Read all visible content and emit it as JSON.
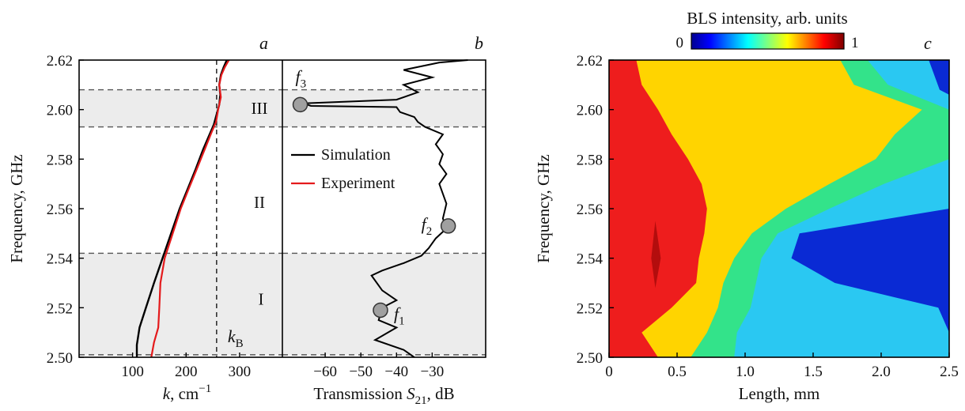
{
  "chart_data": [
    {
      "panel": "a",
      "type": "line",
      "xlabel": "k, cm⁻¹",
      "xlabel_parts": {
        "var": "k",
        "unit": ", cm",
        "sup": "−1"
      },
      "ylabel": "Frequency, GHz",
      "xlim": [
        0,
        380
      ],
      "ylim": [
        2.5,
        2.62
      ],
      "xticks": [
        100,
        200,
        300
      ],
      "yticks": [
        2.5,
        2.52,
        2.54,
        2.56,
        2.58,
        2.6,
        2.62
      ],
      "ytick_labels": [
        "2.50",
        "2.52",
        "2.54",
        "2.56",
        "2.58",
        "2.60",
        "2.62"
      ],
      "vline": {
        "x": 257,
        "label": "kB",
        "label_parts": {
          "var": "k",
          "sub": "B"
        }
      },
      "series": [
        {
          "name": "Simulation",
          "color": "#000000",
          "x": [
            108,
            108,
            113,
            125,
            140,
            156,
            172,
            188,
            203,
            218,
            232,
            244,
            252,
            257,
            262,
            264,
            262,
            265,
            270,
            276
          ],
          "y": [
            2.5,
            2.505,
            2.512,
            2.52,
            2.53,
            2.54,
            2.55,
            2.56,
            2.568,
            2.576,
            2.584,
            2.59,
            2.594,
            2.598,
            2.602,
            2.606,
            2.61,
            2.614,
            2.617,
            2.62
          ]
        },
        {
          "name": "Experiment",
          "color": "#e41a1c",
          "x": [
            135,
            140,
            148,
            150,
            152,
            160,
            175,
            190,
            205,
            220,
            235,
            248,
            256,
            260,
            265,
            262,
            266,
            272,
            280
          ],
          "y": [
            2.5,
            2.506,
            2.512,
            2.52,
            2.53,
            2.54,
            2.55,
            2.56,
            2.568,
            2.576,
            2.584,
            2.591,
            2.595,
            2.6,
            2.605,
            2.61,
            2.614,
            2.617,
            2.62
          ]
        }
      ]
    },
    {
      "panel": "b",
      "type": "line",
      "xlabel": "Transmission S21, dB",
      "xlabel_parts": {
        "pre": "Transmission ",
        "var": "S",
        "sub": "21",
        "post": ", dB"
      },
      "xlim": [
        -72,
        -15
      ],
      "ylim": [
        2.5,
        2.62
      ],
      "xticks": [
        -60,
        -50,
        -40,
        -30
      ],
      "xtick_labels": [
        "−60",
        "−50",
        "−40",
        "−30"
      ],
      "series": [
        {
          "name": "Simulation",
          "color": "#000000",
          "x": [
            -35,
            -38,
            -46,
            -40,
            -45,
            -44,
            -40,
            -44,
            -47,
            -44,
            -38,
            -33,
            -31,
            -29,
            -26,
            -27,
            -26,
            -27,
            -28,
            -26,
            -28,
            -27,
            -29,
            -27,
            -32,
            -34,
            -35,
            -39,
            -40,
            -64,
            -66,
            -40,
            -34,
            -38,
            -30,
            -38,
            -28,
            -20
          ],
          "y": [
            2.5,
            2.503,
            2.507,
            2.512,
            2.515,
            2.52,
            2.523,
            2.527,
            2.533,
            2.535,
            2.538,
            2.541,
            2.544,
            2.548,
            2.552,
            2.556,
            2.562,
            2.566,
            2.57,
            2.574,
            2.578,
            2.582,
            2.586,
            2.59,
            2.593,
            2.595,
            2.597,
            2.599,
            2.601,
            2.6015,
            2.6025,
            2.604,
            2.607,
            2.61,
            2.613,
            2.616,
            2.619,
            2.62
          ]
        }
      ],
      "markers": [
        {
          "label": "f1",
          "var": "f",
          "sub": "1",
          "x": -44.5,
          "y": 2.519
        },
        {
          "label": "f2",
          "var": "f",
          "sub": "2",
          "x": -25.5,
          "y": 2.553
        },
        {
          "label": "f3",
          "var": "f",
          "sub": "3",
          "x": -67,
          "y": 2.602
        }
      ],
      "bands": [
        {
          "label": "I",
          "y_from": 2.501,
          "y_to": 2.542
        },
        {
          "label": "II",
          "y_from": 2.542,
          "y_to": 2.593
        },
        {
          "label": "III",
          "y_from": 2.593,
          "y_to": 2.608
        }
      ],
      "legend": [
        {
          "name": "Simulation",
          "color": "#000000"
        },
        {
          "name": "Experiment",
          "color": "#e41a1c"
        }
      ]
    },
    {
      "panel": "c",
      "type": "heatmap",
      "xlabel": "Length, mm",
      "ylabel": "Frequency, GHz",
      "xlim": [
        0,
        2.5
      ],
      "ylim": [
        2.5,
        2.62
      ],
      "xticks": [
        0,
        0.5,
        1.0,
        1.5,
        2.0,
        2.5
      ],
      "xtick_labels": [
        "0",
        "0.5",
        "1.0",
        "1.5",
        "2.0",
        "2.5"
      ],
      "yticks": [
        2.5,
        2.52,
        2.54,
        2.56,
        2.58,
        2.6,
        2.62
      ],
      "ytick_labels": [
        "2.50",
        "2.52",
        "2.54",
        "2.56",
        "2.58",
        "2.60",
        "2.62"
      ],
      "colorbar": {
        "title": "BLS intensity, arb. units",
        "min_label": "0",
        "max_label": "1",
        "range": [
          0,
          1
        ]
      },
      "levels": [
        {
          "name": "dark-blue",
          "value": 0.1,
          "color": "#0a2ad4"
        },
        {
          "name": "light-blue",
          "value": 0.3,
          "color": "#2ac8f2"
        },
        {
          "name": "green",
          "value": 0.45,
          "color": "#33e38a"
        },
        {
          "name": "yellow",
          "value": 0.65,
          "color": "#ffd400"
        },
        {
          "name": "red",
          "value": 0.9,
          "color": "#ee1d1d"
        }
      ],
      "frequencies": [
        2.5,
        2.51,
        2.52,
        2.53,
        2.54,
        2.55,
        2.56,
        2.57,
        2.58,
        2.59,
        2.6,
        2.61,
        2.62
      ],
      "boundaries_mm": {
        "red_yellow": [
          0.36,
          0.24,
          0.46,
          0.64,
          0.66,
          0.7,
          0.72,
          0.68,
          0.58,
          0.46,
          0.36,
          0.24,
          0.2
        ],
        "yellow_green": [
          0.6,
          0.72,
          0.8,
          0.84,
          0.92,
          1.05,
          1.3,
          1.62,
          1.96,
          2.1,
          2.3,
          1.8,
          1.7
        ],
        "green_lightblue": [
          0.92,
          0.94,
          1.04,
          1.08,
          1.12,
          1.24,
          1.62,
          2.02,
          2.5,
          2.5,
          2.5,
          2.05,
          1.9
        ],
        "lightblue_darkblue": [
          2.5,
          2.5,
          2.42,
          1.66,
          1.34,
          1.4,
          2.5,
          2.5,
          2.5,
          2.5,
          2.5,
          2.5,
          2.46
        ]
      }
    }
  ]
}
